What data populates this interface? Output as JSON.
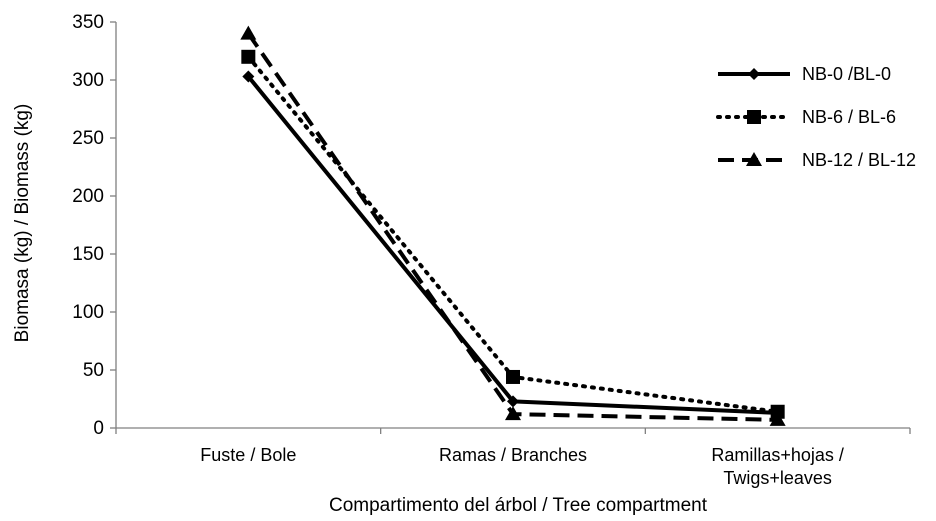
{
  "chart_data": {
    "type": "line",
    "title": "",
    "xlabel": "Compartimento del árbol / Tree compartment",
    "ylabel": "Biomasa (kg) / Biomass (kg)",
    "categories": [
      [
        "Fuste / Bole"
      ],
      [
        "Ramas / Branches"
      ],
      [
        "Ramillas+hojas /",
        "Twigs+leaves"
      ]
    ],
    "ylim": [
      0,
      350
    ],
    "yticks": [
      0,
      50,
      100,
      150,
      200,
      250,
      300,
      350
    ],
    "grid": false,
    "legend_position": "right",
    "series": [
      {
        "name": "NB-0 /BL-0",
        "values": [
          303,
          23,
          13
        ],
        "line_style": "solid",
        "marker": "diamond",
        "color": "#000000"
      },
      {
        "name": "NB-6 / BL-6",
        "values": [
          320,
          44,
          14
        ],
        "line_style": "dotted",
        "marker": "square",
        "color": "#000000"
      },
      {
        "name": "NB-12 / BL-12",
        "values": [
          340,
          12,
          7
        ],
        "line_style": "dashed",
        "marker": "triangle",
        "color": "#000000"
      }
    ]
  }
}
